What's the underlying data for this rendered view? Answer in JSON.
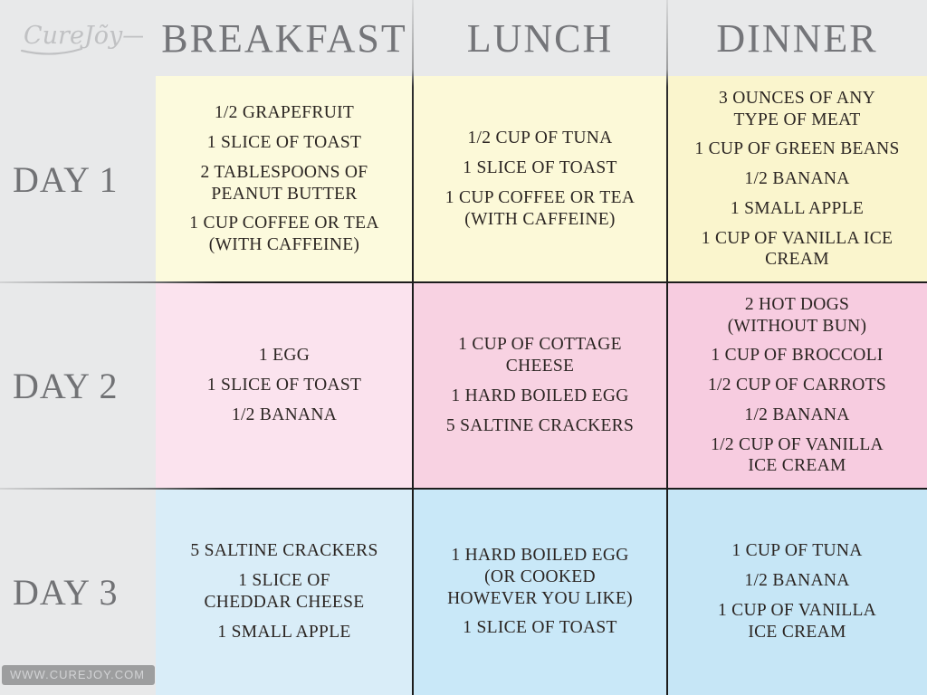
{
  "brand": {
    "logo_text": "CureJõy—",
    "watermark": "WWW.CUREJOY.COM"
  },
  "colors": {
    "background": "#e8e9ea",
    "header_text": "#747579",
    "cell_text": "#2b2522",
    "logo": "#c0c1c3"
  },
  "table": {
    "column_headers": [
      "BREAKFAST",
      "LUNCH",
      "DINNER"
    ],
    "rows": [
      {
        "label": "DAY 1",
        "cells": [
          {
            "color": "#fcfadd",
            "items": [
              "1/2 GRAPEFRUIT",
              "1 SLICE OF TOAST",
              "2 TABLESPOONS OF\nPEANUT BUTTER",
              "1 CUP COFFEE OR TEA\n(WITH CAFFEINE)"
            ]
          },
          {
            "color": "#fcf9d8",
            "items": [
              "1/2 CUP OF TUNA",
              "1 SLICE OF TOAST",
              "1 CUP COFFEE OR TEA\n(WITH CAFFEINE)"
            ]
          },
          {
            "color": "#faf5cd",
            "items": [
              "3 OUNCES OF ANY\nTYPE OF MEAT",
              "1 CUP OF GREEN BEANS",
              "1/2 BANANA",
              "1 SMALL APPLE",
              "1 CUP OF VANILLA ICE\nCREAM"
            ]
          }
        ]
      },
      {
        "label": "DAY 2",
        "cells": [
          {
            "color": "#fbe3ee",
            "items": [
              "1 EGG",
              "1 SLICE OF TOAST",
              "1/2 BANANA"
            ]
          },
          {
            "color": "#f8d2e2",
            "items": [
              "1 CUP OF COTTAGE\nCHEESE",
              "1 HARD BOILED EGG",
              "5 SALTINE CRACKERS"
            ]
          },
          {
            "color": "#f7cce0",
            "items": [
              "2 HOT DOGS\n(WITHOUT BUN)",
              "1 CUP OF BROCCOLI",
              "1/2 CUP OF CARROTS",
              "1/2 BANANA",
              "1/2 CUP OF VANILLA\nICE CREAM"
            ]
          }
        ]
      },
      {
        "label": "DAY 3",
        "cells": [
          {
            "color": "#d9edf8",
            "items": [
              "5 SALTINE CRACKERS",
              "1 SLICE OF\nCHEDDAR CHEESE",
              "1 SMALL APPLE"
            ]
          },
          {
            "color": "#c9e8f8",
            "items": [
              "1 HARD BOILED EGG\n(OR COOKED\nHOWEVER YOU LIKE)",
              "1 SLICE OF TOAST"
            ]
          },
          {
            "color": "#c6e6f6",
            "items": [
              "1 CUP OF TUNA",
              "1/2 BANANA",
              "1 CUP OF VANILLA\nICE CREAM"
            ]
          }
        ]
      }
    ]
  }
}
